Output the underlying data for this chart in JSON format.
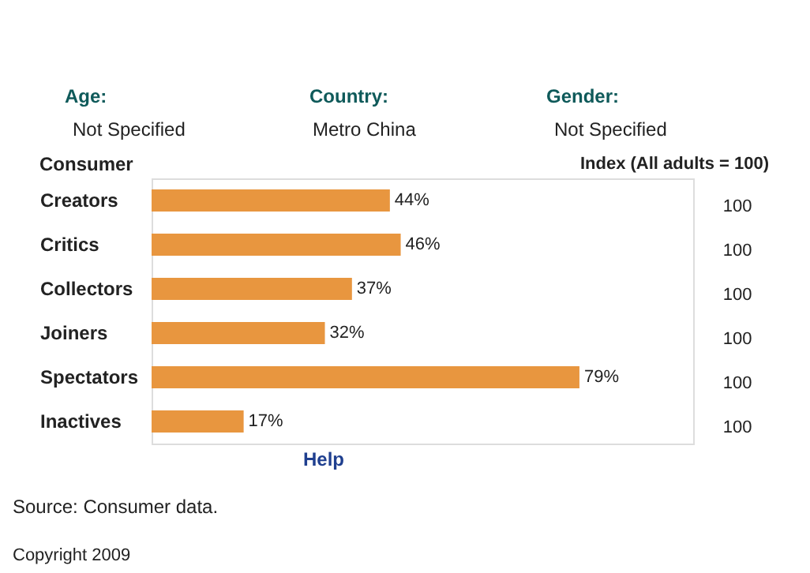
{
  "chart_data": {
    "type": "bar",
    "orientation": "horizontal",
    "ylabel": "Consumer",
    "categories": [
      "Creators",
      "Critics",
      "Collectors",
      "Joiners",
      "Spectators",
      "Inactives"
    ],
    "values": [
      44,
      46,
      37,
      32,
      79,
      17
    ],
    "value_labels": [
      "44%",
      "46%",
      "37%",
      "32%",
      "79%",
      "17%"
    ],
    "color": "#e8963f",
    "xlim": [
      0,
      100
    ],
    "tick_labels": "y",
    "annotations": [
      "Age:",
      "Not Specified",
      "Country:",
      "Metro China",
      "Gender:",
      "Not Specified",
      "Index (All adults = 100)",
      "Help",
      "Source: Consumer data.",
      "Copyright 2009",
      "100",
      "100",
      "100",
      "100",
      "100",
      "100"
    ]
  }
}
